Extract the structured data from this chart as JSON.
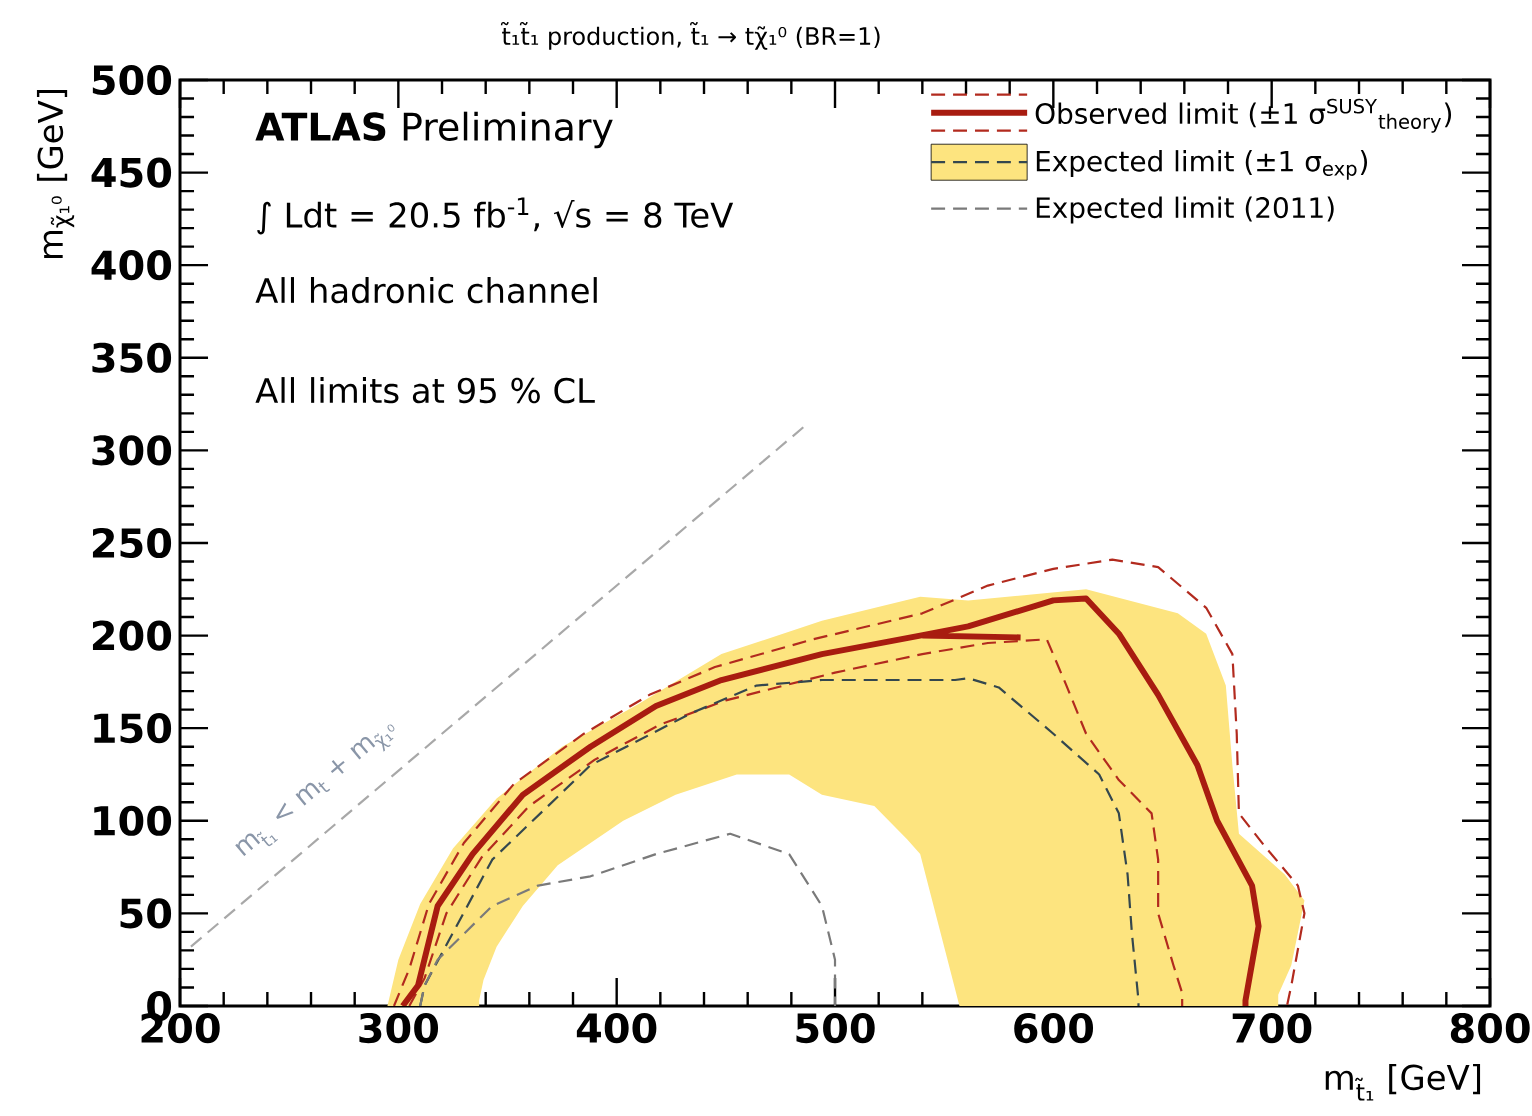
{
  "chart_data": {
    "type": "line",
    "title": "t̃₁t̃₁ production, t̃₁ → tχ̃₁⁰ (BR=1)",
    "xlabel": "m$_{t̃₁}$ [GeV]",
    "ylabel": "m$_{χ̃₁⁰}$ [GeV]",
    "xlim": [
      200,
      800
    ],
    "xticks": [
      200,
      300,
      400,
      500,
      600,
      700,
      800
    ],
    "ylim": [
      0,
      500
    ],
    "yticks": [
      0,
      50,
      100,
      150,
      200,
      250,
      300,
      350,
      400,
      450,
      500
    ],
    "grid": false,
    "legend": "top right",
    "annotations": [
      "**ATLAS** Preliminary",
      "∫ Ldt = 20.5 fb$^{-1}$, √s = 8 TeV",
      "All hadronic channel",
      "All limits at 95 % CL",
      "m$_{t̃₁}$ < m$_{t}$ + m$_{χ̃₁⁰}$"
    ],
    "series": [
      {
        "color": "#b22a1e",
        "line_style": "dashed",
        "x": [
          298,
          305,
          314,
          330,
          353,
          385,
          415,
          445,
          490,
          540,
          570,
          600,
          627,
          648,
          670,
          682,
          684,
          685,
          697,
          712,
          715,
          709,
          707
        ],
        "values": [
          0,
          20,
          55,
          88,
          120,
          147,
          168,
          183,
          198,
          212,
          227,
          236,
          241,
          237,
          215,
          190,
          147,
          104,
          86,
          65,
          50,
          11,
          0
        ]
      },
      {
        "color": "#b22a1e",
        "line_style": "dashed",
        "x": [
          305,
          312,
          322,
          338,
          360,
          390,
          420,
          450,
          500,
          540,
          570,
          597,
          606,
          615,
          630,
          645,
          648,
          648,
          655,
          659,
          659
        ],
        "values": [
          0,
          15,
          50,
          80,
          108,
          133,
          152,
          165,
          180,
          190,
          196,
          198,
          173,
          147,
          122,
          104,
          79,
          50,
          22,
          7,
          0
        ]
      },
      {
        "name": "Observed limit (±1 σ$^{SUSY}$$_{theory}$)",
        "color": "#a81c10",
        "line_style": "solid",
        "x": [
          302,
          309,
          318,
          334,
          357,
          388,
          418,
          448,
          494,
          539,
          561,
          600,
          615,
          630,
          648,
          666,
          675,
          691,
          694,
          688,
          688,
          null,
          540,
          585
        ],
        "values": [
          0,
          11,
          54,
          82,
          114,
          140,
          162,
          176,
          190,
          200,
          205,
          219,
          220,
          201,
          168,
          130,
          100,
          65,
          43,
          3,
          0,
          null,
          200,
          199
        ]
      },
      {
        "type": "area",
        "color": "#fde47f",
        "x": [
          295,
          300,
          310,
          325,
          345,
          375,
          410,
          448,
          494,
          539,
          561,
          615,
          657,
          670,
          679,
          682,
          685,
          706,
          715,
          709,
          703,
          703,
          557,
          539,
          533,
          518,
          494,
          479,
          455,
          427,
          403,
          373,
          357,
          345,
          339,
          337,
          337,
          295
        ],
        "values": [
          0,
          25,
          55,
          85,
          112,
          140,
          163,
          190,
          208,
          221,
          219,
          225,
          212,
          201,
          173,
          130,
          93,
          71,
          57,
          22,
          6,
          0,
          0,
          82,
          90,
          108,
          114,
          125,
          125,
          114,
          100,
          76,
          54,
          32,
          14,
          3,
          0,
          0
        ]
      },
      {
        "name": "Expected limit (±1 σ$_{exp}$)",
        "color": "#34474e",
        "line_style": "dashed",
        "x": [
          310,
          312,
          343,
          388,
          434,
          464,
          494,
          555,
          561,
          575,
          600,
          621,
          630,
          634,
          636,
          639,
          639
        ],
        "values": [
          0,
          11,
          79,
          130,
          158,
          173,
          176,
          176,
          177,
          172,
          147,
          125,
          104,
          71,
          39,
          3,
          0
        ]
      },
      {
        "name": "Expected limit (2011)",
        "color": "#7a7a7a",
        "line_style": "dashed",
        "x": [
          310,
          312,
          318,
          343,
          364,
          388,
          418,
          452,
          479,
          494,
          500,
          500
        ],
        "values": [
          0,
          11,
          25,
          54,
          65,
          70,
          82,
          93,
          82,
          54,
          25,
          0
        ]
      },
      {
        "color": "#a8a8a8",
        "line_style": "dashed",
        "x": [
          205,
          486
        ],
        "values": [
          32,
          313
        ]
      }
    ]
  }
}
